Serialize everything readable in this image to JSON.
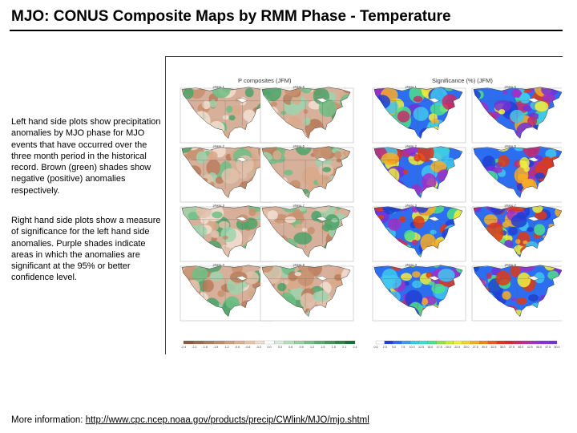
{
  "title": "MJO: CONUS Composite Maps by RMM Phase - Temperature",
  "paragraph1": "Left hand side plots show precipitation anomalies by MJO phase for MJO events that have occurred over the three month period in the historical record. Brown (green) shades show negative (positive) anomalies respectively.",
  "paragraph2": "Right hand side plots show a measure of significance for the left hand side anomalies. Purple shades indicate areas in which the anomalies are significant at the 95% or better confidence level.",
  "footer": {
    "prefix": "More information: ",
    "link": "http://www.cpc.ncep.noaa.gov/products/precip/CWlink/MJO/mjo.shtml"
  },
  "figure": {
    "left_header": "P composites (JFM)",
    "right_header": "Significance (%) (JFM)",
    "left_phases": [
      [
        "phase 1",
        "phase 5"
      ],
      [
        "phase 2",
        "phase 6"
      ],
      [
        "phase 3",
        "phase 7"
      ],
      [
        "phase 4",
        "phase 8"
      ]
    ],
    "right_phases": [
      [
        "phase 1",
        "phase 5"
      ],
      [
        "phase 2",
        "phase 6"
      ],
      [
        "phase 3",
        "phase 7"
      ],
      [
        "phase 4",
        "phase 8"
      ]
    ],
    "left_colorbar": {
      "labels": [
        "-2.4",
        "-2.1",
        "-1.8",
        "-1.5",
        "-1.2",
        "-0.9",
        "-0.6",
        "-0.3",
        "0.0",
        "0.3",
        "0.6",
        "0.9",
        "1.2",
        "1.5",
        "1.8",
        "2.1",
        "2.4"
      ],
      "colors": [
        "#8b5a3c",
        "#9c6b4a",
        "#ad7c58",
        "#be8d68",
        "#cf9f7c",
        "#dcb292",
        "#e8c6ac",
        "#f2dccb",
        "#ffffff",
        "#d7eedc",
        "#b7e0c0",
        "#96d1a4",
        "#76c089",
        "#58ae70",
        "#3f9a5b",
        "#2a8548",
        "#176f38"
      ]
    },
    "right_colorbar": {
      "labels": [
        "0.0",
        "2.5",
        "5.0",
        "7.5",
        "10.0",
        "12.5",
        "15.0",
        "17.5",
        "20.0",
        "22.5",
        "25.0",
        "27.5",
        "30.0",
        "32.5",
        "35.0",
        "37.5",
        "40.0",
        "42.5",
        "45.0",
        "47.5",
        "50.0"
      ],
      "colors": [
        "#ffffff",
        "#1f3fd6",
        "#2d6ef0",
        "#3f9cf5",
        "#3fc8f0",
        "#39e0d0",
        "#4ee08a",
        "#8fe64a",
        "#c8ee3a",
        "#f2f03a",
        "#f7d22e",
        "#f7ae26",
        "#f2861f",
        "#ea5e1a",
        "#df3a16",
        "#d42a2a",
        "#c62b6a",
        "#b82da0",
        "#a02fc8",
        "#8a2fd6",
        "#7430d8"
      ]
    }
  }
}
